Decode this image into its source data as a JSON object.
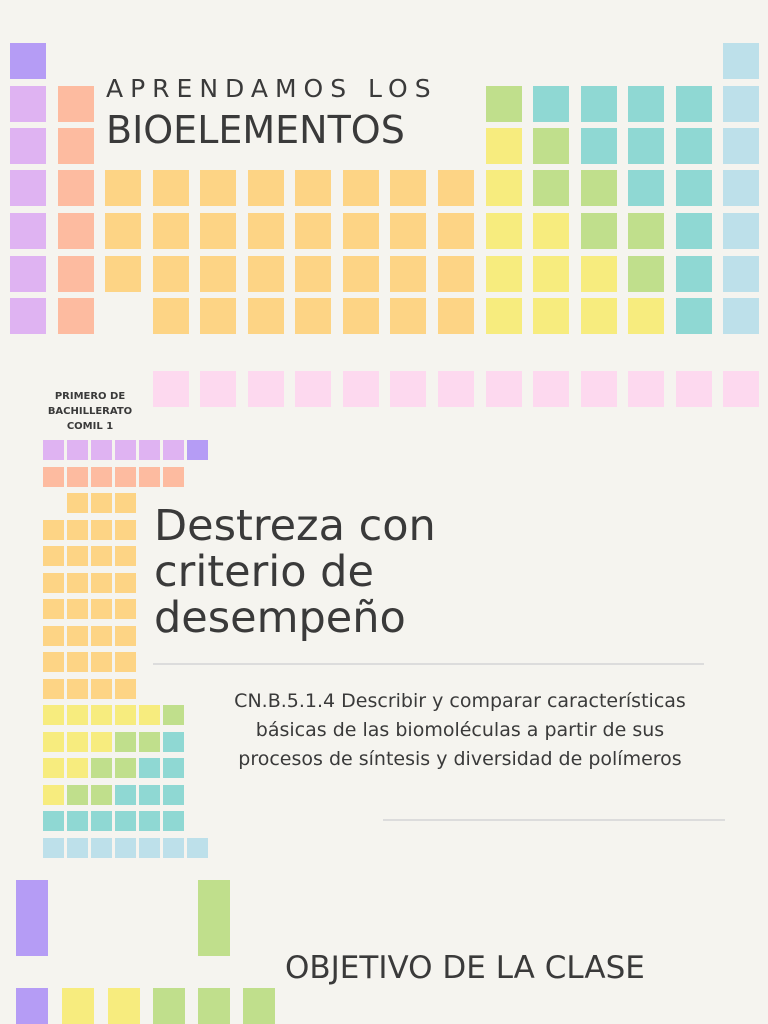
{
  "header": {
    "kicker": "APRENDAMOS LOS",
    "title": "BIOELEMENTOS"
  },
  "badge": {
    "lines": [
      "PRIMERO DE",
      "BACHILLERATO",
      "COMIL 1"
    ]
  },
  "section": {
    "title_lines": [
      "Destreza con",
      "criterio de",
      "desempeño"
    ],
    "body_lines": [
      "CN.B.5.1.4 Describir y comparar características",
      "básicas de las biomoléculas a partir de sus",
      "procesos de síntesis y diversidad de polímeros"
    ]
  },
  "objective": "OBJETIVO DE LA CLASE"
}
